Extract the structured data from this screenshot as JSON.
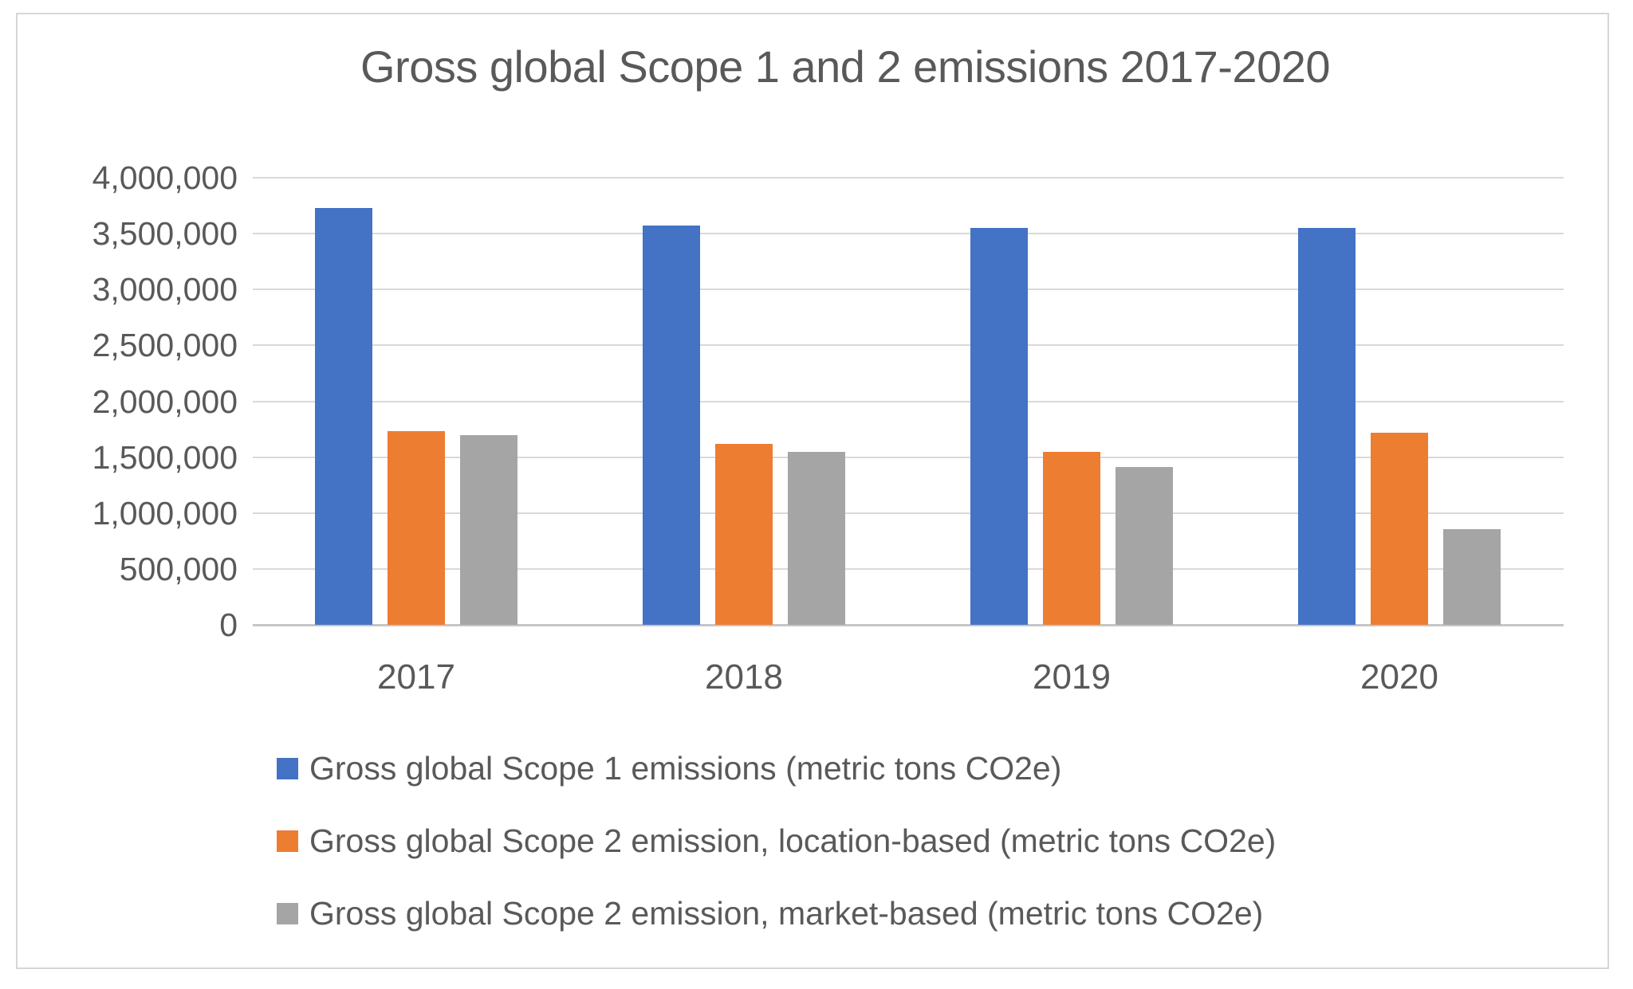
{
  "chart_data": {
    "type": "bar",
    "title": "Gross global Scope 1 and 2 emissions 2017-2020",
    "categories": [
      "2017",
      "2018",
      "2019",
      "2020"
    ],
    "series": [
      {
        "key": "scope1",
        "name": "Gross global Scope 1 emissions (metric tons CO2e)",
        "color": "#4472C4",
        "values": [
          3730000,
          3575000,
          3550000,
          3550000
        ]
      },
      {
        "key": "scope2-location",
        "name": "Gross global Scope 2 emission, location-based (metric tons CO2e)",
        "color": "#ED7D31",
        "values": [
          1735000,
          1620000,
          1550000,
          1720000
        ]
      },
      {
        "key": "scope2-market",
        "name": "Gross global Scope 2 emission, market-based (metric tons CO2e)",
        "color": "#A5A5A5",
        "values": [
          1700000,
          1545000,
          1415000,
          855000
        ]
      }
    ],
    "ylim": [
      0,
      4000000
    ],
    "ytick_step": 500000,
    "ytick_labels": [
      "0",
      "500,000",
      "1,000,000",
      "1,500,000",
      "2,000,000",
      "2,500,000",
      "3,000,000",
      "3,500,000",
      "4,000,000"
    ],
    "grid": true,
    "legend_position": "bottom-left",
    "colors": {
      "text": "#595959",
      "gridline": "#D9D9D9",
      "axis_line": "#C6C6C6",
      "chart_border": "#D6D6D6",
      "background": "#FFFFFF"
    }
  }
}
